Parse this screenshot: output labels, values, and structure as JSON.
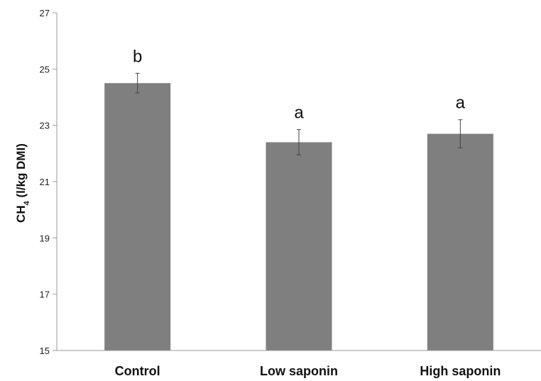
{
  "chart_data": {
    "type": "bar",
    "categories": [
      "Control",
      "Low saponin",
      "High saponin"
    ],
    "values": [
      24.5,
      22.4,
      22.7
    ],
    "errors": [
      0.35,
      0.45,
      0.5
    ],
    "significance_letters": [
      "b",
      "a",
      "a"
    ],
    "ylabel_main": "CH",
    "ylabel_sub": "4",
    "ylabel_rest": " (l/kg DMI)",
    "ylim": [
      15,
      27
    ],
    "yticks": [
      15,
      17,
      19,
      21,
      23,
      25,
      27
    ],
    "grid": false,
    "bar_color": "#7f7f7f",
    "error_color": "#444444"
  }
}
